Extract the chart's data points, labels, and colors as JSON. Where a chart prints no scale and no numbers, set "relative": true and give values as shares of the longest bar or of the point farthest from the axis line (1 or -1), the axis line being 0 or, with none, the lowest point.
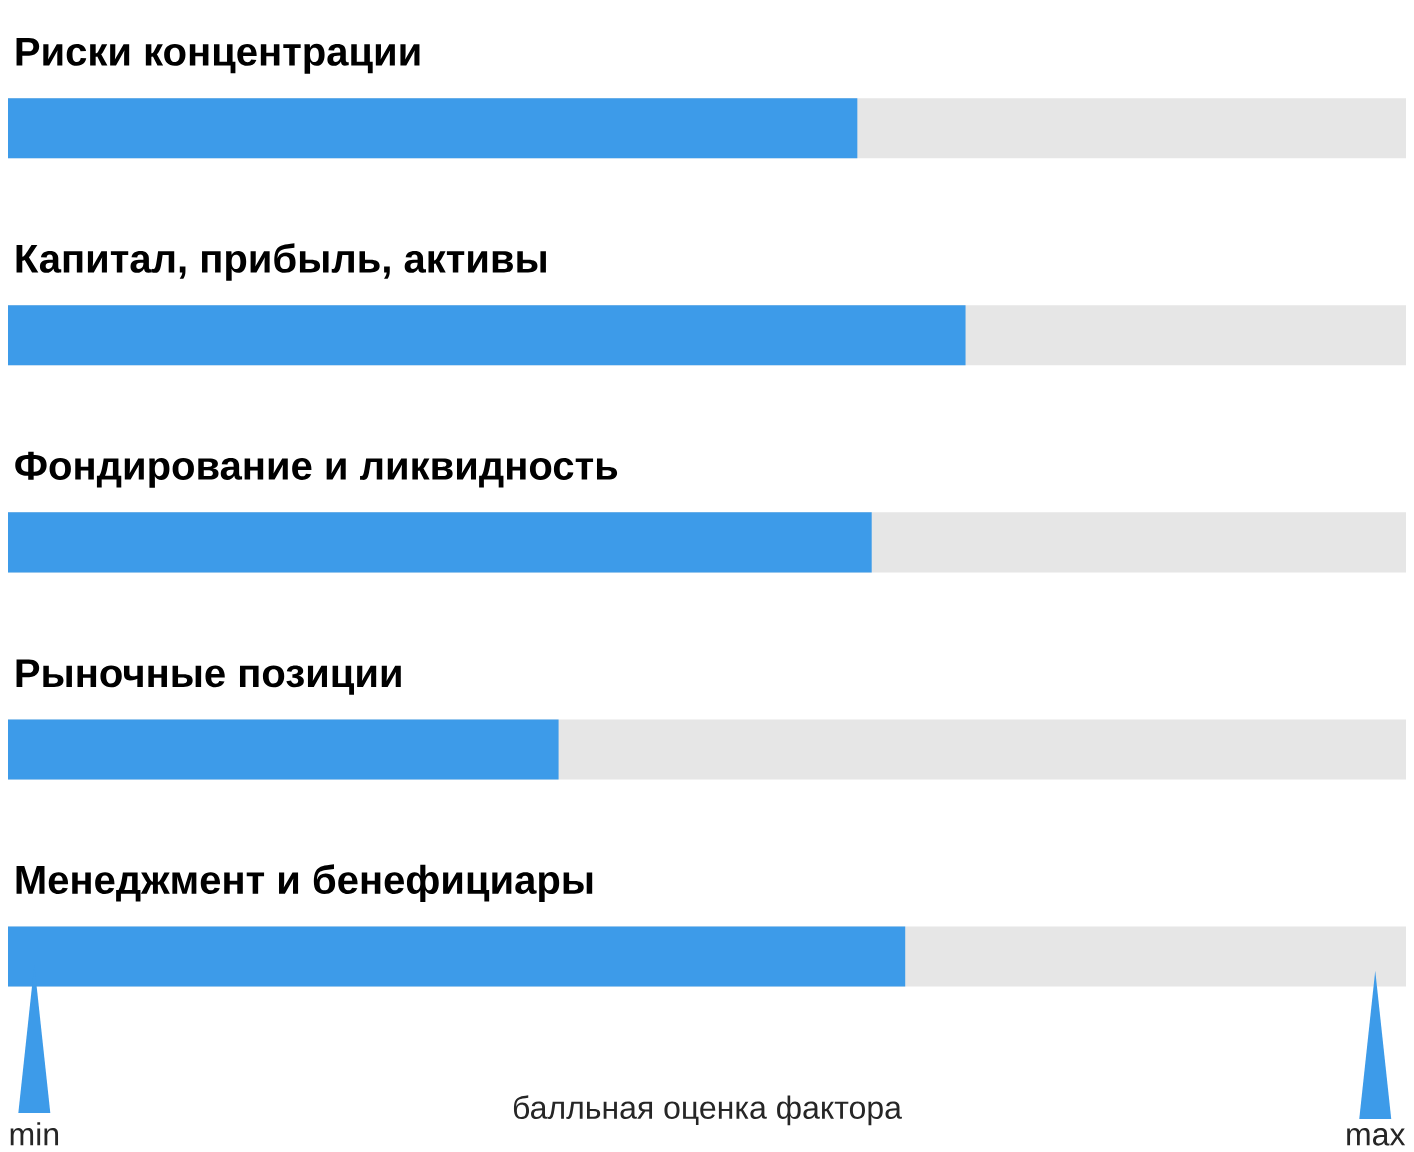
{
  "chart_data": {
    "type": "bar",
    "orientation": "horizontal",
    "relative": true,
    "categories": [
      "Риски концентрации",
      "Капитал, прибыль, активы",
      "Фондирование и ликвидность",
      "Рыночные позиции",
      "Менеджмент и бенефициары"
    ],
    "values": [
      0.887,
      1,
      0.902,
      0.575,
      0.937
    ],
    "color": "#3d9be9",
    "xlabel": "балльная оценка фактора",
    "annotations": [
      "min",
      "max"
    ]
  }
}
